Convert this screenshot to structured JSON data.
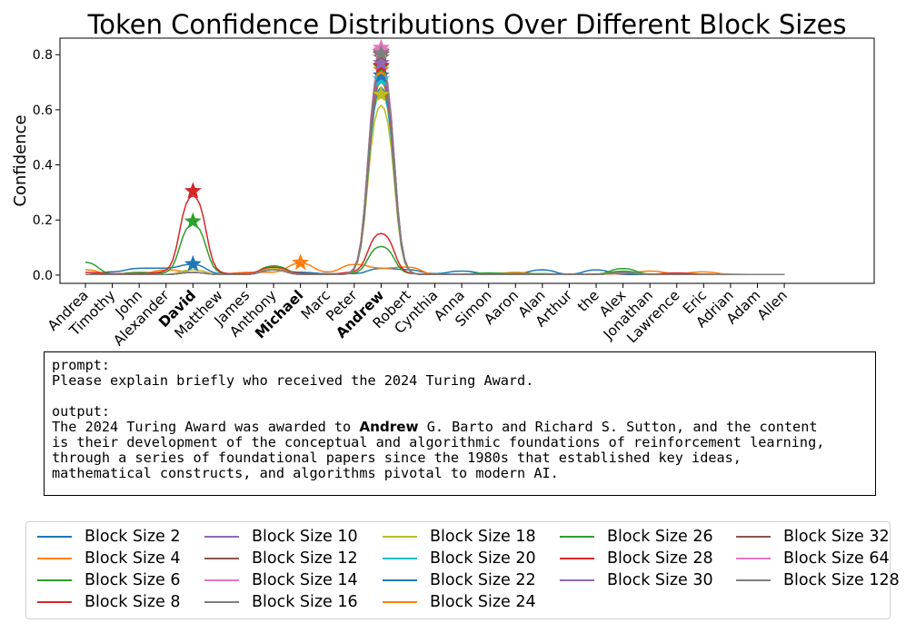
{
  "chart_data": {
    "type": "line",
    "title": "Token Confidence Distributions Over Different Block Sizes",
    "xlabel": "",
    "ylabel": "Confidence",
    "ylim": [
      -0.03,
      0.86
    ],
    "yticks": [
      "0.0",
      "0.2",
      "0.4",
      "0.6",
      "0.8"
    ],
    "ytick_values": [
      0,
      0.2,
      0.4,
      0.6,
      0.8
    ],
    "categories": [
      "Andrea",
      "Timothy",
      "John",
      "Alexander",
      "David",
      "Matthew",
      "James",
      "Anthony",
      "Michael",
      "Marc",
      "Peter",
      "Andrew",
      "Robert",
      "Cynthia",
      "Anna",
      "Simon",
      "Aaron",
      "Alan",
      "Arthur",
      "the",
      "Alex",
      "Jonathan",
      "Lawrence",
      "Eric",
      "Adrian",
      "Adam",
      "Allen"
    ],
    "bold_categories": [
      "David",
      "Michael",
      "Andrew"
    ],
    "grid": false,
    "legend_position": "below",
    "series": [
      {
        "name": "Block Size 2",
        "color": "#1f77b4",
        "values": [
          0.002,
          0.012,
          0.025,
          0.025,
          0.04,
          0.005,
          0.002,
          0.02,
          0.01,
          0.005,
          0.005,
          0.025,
          0.02,
          0.005,
          0.015,
          0.005,
          0.005,
          0.02,
          0.002,
          0.02,
          0.002,
          0.002,
          0.002,
          0.002,
          0.002,
          0.002,
          0.002
        ],
        "star": {
          "index": 4,
          "value": 0.04
        }
      },
      {
        "name": "Block Size 4",
        "color": "#ff7f0e",
        "values": [
          0.02,
          0.003,
          0.003,
          0.02,
          0.01,
          0.003,
          0.01,
          0.01,
          0.045,
          0.01,
          0.04,
          0.025,
          0.03,
          0.003,
          0.003,
          0.003,
          0.01,
          0.003,
          0.003,
          0.003,
          0.005,
          0.015,
          0.005,
          0.012,
          0.003,
          0.002,
          0.002
        ],
        "star": {
          "index": 8,
          "value": 0.045
        }
      },
      {
        "name": "Block Size 6",
        "color": "#2ca02c",
        "values": [
          0.048,
          0.003,
          0.01,
          0.005,
          0.195,
          0.005,
          0.003,
          0.035,
          0.005,
          0.003,
          0.005,
          0.11,
          0.005,
          0.003,
          0.003,
          0.008,
          0.005,
          0.005,
          0.003,
          0.003,
          0.025,
          0.003,
          0.003,
          0.003,
          0.002,
          0.002,
          0.002
        ],
        "star": {
          "index": 4,
          "value": 0.195
        }
      },
      {
        "name": "Block Size 8",
        "color": "#d62728",
        "values": [
          0.01,
          0.005,
          0.005,
          0.01,
          0.305,
          0.005,
          0.005,
          0.03,
          0.005,
          0.003,
          0.01,
          0.16,
          0.005,
          0.003,
          0.003,
          0.003,
          0.003,
          0.003,
          0.003,
          0.003,
          0.008,
          0.003,
          0.008,
          0.003,
          0.002,
          0.002,
          0.002
        ],
        "star": {
          "index": 4,
          "value": 0.305
        }
      },
      {
        "name": "Block Size 10",
        "color": "#9467bd",
        "values": [
          0.002,
          0.002,
          0.002,
          0.002,
          0.01,
          0.002,
          0.002,
          0.02,
          0.002,
          0.002,
          0.002,
          0.81,
          0.002,
          0.002,
          0.002,
          0.002,
          0.002,
          0.002,
          0.002,
          0.002,
          0.01,
          0.002,
          0.002,
          0.002,
          0.002,
          0.002,
          0.002
        ],
        "star": {
          "index": 11,
          "value": 0.81
        }
      },
      {
        "name": "Block Size 12",
        "color": "#8c564b",
        "values": [
          0.002,
          0.002,
          0.002,
          0.002,
          0.01,
          0.002,
          0.002,
          0.02,
          0.002,
          0.002,
          0.002,
          0.805,
          0.002,
          0.002,
          0.002,
          0.002,
          0.002,
          0.002,
          0.002,
          0.002,
          0.01,
          0.002,
          0.002,
          0.002,
          0.002,
          0.002,
          0.002
        ],
        "star": {
          "index": 11,
          "value": 0.805
        }
      },
      {
        "name": "Block Size 14",
        "color": "#e377c2",
        "values": [
          0.002,
          0.002,
          0.002,
          0.002,
          0.01,
          0.002,
          0.002,
          0.02,
          0.002,
          0.002,
          0.002,
          0.825,
          0.002,
          0.002,
          0.002,
          0.002,
          0.002,
          0.002,
          0.002,
          0.002,
          0.01,
          0.002,
          0.002,
          0.002,
          0.002,
          0.002,
          0.002
        ],
        "star": {
          "index": 11,
          "value": 0.825
        }
      },
      {
        "name": "Block Size 16",
        "color": "#7f7f7f",
        "values": [
          0.002,
          0.002,
          0.002,
          0.002,
          0.01,
          0.002,
          0.002,
          0.02,
          0.002,
          0.002,
          0.002,
          0.79,
          0.002,
          0.002,
          0.002,
          0.002,
          0.002,
          0.002,
          0.002,
          0.002,
          0.01,
          0.002,
          0.002,
          0.002,
          0.002,
          0.002,
          0.002
        ],
        "star": {
          "index": 11,
          "value": 0.79
        }
      },
      {
        "name": "Block Size 18",
        "color": "#bcbd22",
        "values": [
          0.002,
          0.002,
          0.002,
          0.002,
          0.02,
          0.002,
          0.002,
          0.025,
          0.002,
          0.002,
          0.002,
          0.655,
          0.002,
          0.002,
          0.002,
          0.002,
          0.002,
          0.002,
          0.002,
          0.002,
          0.015,
          0.002,
          0.002,
          0.002,
          0.002,
          0.002,
          0.002
        ],
        "star": {
          "index": 11,
          "value": 0.655
        }
      },
      {
        "name": "Block Size 20",
        "color": "#17becf",
        "values": [
          0.002,
          0.002,
          0.002,
          0.002,
          0.01,
          0.002,
          0.002,
          0.02,
          0.002,
          0.002,
          0.002,
          0.71,
          0.002,
          0.002,
          0.002,
          0.002,
          0.002,
          0.002,
          0.002,
          0.002,
          0.01,
          0.002,
          0.002,
          0.002,
          0.002,
          0.002,
          0.002
        ],
        "star": {
          "index": 11,
          "value": 0.71
        }
      },
      {
        "name": "Block Size 22",
        "color": "#1f77b4",
        "values": [
          0.002,
          0.002,
          0.002,
          0.002,
          0.01,
          0.002,
          0.002,
          0.02,
          0.002,
          0.002,
          0.002,
          0.725,
          0.002,
          0.002,
          0.002,
          0.002,
          0.002,
          0.002,
          0.002,
          0.002,
          0.01,
          0.002,
          0.002,
          0.002,
          0.002,
          0.002,
          0.002
        ],
        "star": {
          "index": 11,
          "value": 0.725
        }
      },
      {
        "name": "Block Size 24",
        "color": "#ff7f0e",
        "values": [
          0.002,
          0.002,
          0.002,
          0.002,
          0.01,
          0.002,
          0.002,
          0.02,
          0.002,
          0.002,
          0.002,
          0.745,
          0.002,
          0.002,
          0.002,
          0.002,
          0.002,
          0.002,
          0.002,
          0.002,
          0.01,
          0.002,
          0.002,
          0.002,
          0.002,
          0.002,
          0.002
        ],
        "star": {
          "index": 11,
          "value": 0.745
        }
      },
      {
        "name": "Block Size 26",
        "color": "#2ca02c",
        "values": [
          0.002,
          0.002,
          0.002,
          0.002,
          0.01,
          0.002,
          0.002,
          0.02,
          0.002,
          0.002,
          0.002,
          0.755,
          0.002,
          0.002,
          0.002,
          0.002,
          0.002,
          0.002,
          0.002,
          0.002,
          0.015,
          0.002,
          0.002,
          0.002,
          0.002,
          0.002,
          0.002
        ],
        "star": {
          "index": 11,
          "value": 0.755
        }
      },
      {
        "name": "Block Size 28",
        "color": "#d62728",
        "values": [
          0.002,
          0.002,
          0.002,
          0.002,
          0.01,
          0.002,
          0.002,
          0.02,
          0.002,
          0.002,
          0.002,
          0.76,
          0.002,
          0.002,
          0.002,
          0.002,
          0.002,
          0.002,
          0.002,
          0.002,
          0.01,
          0.002,
          0.002,
          0.002,
          0.002,
          0.002,
          0.002
        ],
        "star": {
          "index": 11,
          "value": 0.76
        }
      },
      {
        "name": "Block Size 30",
        "color": "#9467bd",
        "values": [
          0.002,
          0.002,
          0.002,
          0.002,
          0.01,
          0.002,
          0.002,
          0.02,
          0.002,
          0.002,
          0.002,
          0.77,
          0.002,
          0.002,
          0.002,
          0.002,
          0.002,
          0.002,
          0.002,
          0.002,
          0.01,
          0.002,
          0.002,
          0.002,
          0.002,
          0.002,
          0.002
        ],
        "star": {
          "index": 11,
          "value": 0.77
        }
      },
      {
        "name": "Block Size 32",
        "color": "#8c564b",
        "values": [
          0.002,
          0.002,
          0.002,
          0.002,
          0.01,
          0.002,
          0.002,
          0.02,
          0.002,
          0.002,
          0.002,
          0.8,
          0.002,
          0.002,
          0.002,
          0.002,
          0.002,
          0.002,
          0.002,
          0.002,
          0.01,
          0.002,
          0.002,
          0.002,
          0.002,
          0.002,
          0.002
        ],
        "star": {
          "index": 11,
          "value": 0.8
        }
      },
      {
        "name": "Block Size 64",
        "color": "#e377c2",
        "values": [
          0.002,
          0.002,
          0.002,
          0.002,
          0.01,
          0.002,
          0.002,
          0.02,
          0.002,
          0.002,
          0.002,
          0.815,
          0.002,
          0.002,
          0.002,
          0.002,
          0.002,
          0.002,
          0.002,
          0.002,
          0.01,
          0.002,
          0.002,
          0.002,
          0.002,
          0.002,
          0.002
        ],
        "star": {
          "index": 11,
          "value": 0.815
        }
      },
      {
        "name": "Block Size 128",
        "color": "#7f7f7f",
        "values": [
          0.002,
          0.002,
          0.002,
          0.002,
          0.01,
          0.002,
          0.002,
          0.02,
          0.002,
          0.002,
          0.002,
          0.805,
          0.002,
          0.002,
          0.002,
          0.002,
          0.002,
          0.002,
          0.002,
          0.002,
          0.01,
          0.002,
          0.002,
          0.002,
          0.002,
          0.002,
          0.002
        ],
        "star": {
          "index": 11,
          "value": 0.805
        }
      }
    ]
  },
  "text_box": {
    "prompt_label": "prompt:",
    "prompt_text": "Please explain briefly who received the 2024 Turing Award.",
    "output_label": "output:",
    "output_line1_pre": "The 2024 Turing Award was awarded to ",
    "output_line1_bold": "Andrew",
    "output_line1_post": " G. Barto and Richard S. Sutton, and the content",
    "output_line2": "is their development of the conceptual and algorithmic foundations of reinforcement learning,",
    "output_line3": "through a series of foundational papers since the 1980s that established key ideas,",
    "output_line4": "mathematical constructs, and algorithms pivotal to modern AI."
  }
}
